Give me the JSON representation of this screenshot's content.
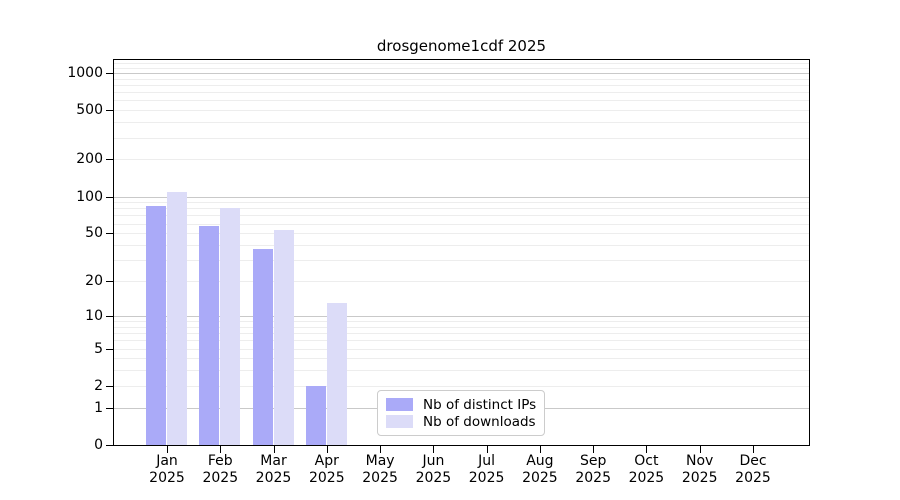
{
  "title": "drosgenome1cdf 2025",
  "legend": {
    "items": [
      {
        "label": "Nb of distinct IPs",
        "color": "#aaaaf8"
      },
      {
        "label": "Nb of downloads",
        "color": "#dcdcf8"
      }
    ]
  },
  "chart_data": {
    "type": "bar",
    "title": "drosgenome1cdf 2025",
    "categories": [
      "Jan",
      "Feb",
      "Mar",
      "Apr",
      "May",
      "Jun",
      "Jul",
      "Aug",
      "Sep",
      "Oct",
      "Nov",
      "Dec"
    ],
    "category_year": "2025",
    "series": [
      {
        "name": "Nb of distinct IPs",
        "color": "#aaaaf8",
        "values": [
          83,
          57,
          37,
          2,
          0,
          0,
          0,
          0,
          0,
          0,
          0,
          0
        ]
      },
      {
        "name": "Nb of downloads",
        "color": "#dcdcf8",
        "values": [
          108,
          80,
          53,
          13,
          0,
          0,
          0,
          0,
          0,
          0,
          0,
          0
        ]
      }
    ],
    "yscale": "log1p",
    "ylim": [
      0,
      1290
    ],
    "yticks": [
      0,
      1,
      2,
      5,
      10,
      20,
      50,
      100,
      200,
      500,
      1000
    ],
    "minor_gridlines": [
      2,
      3,
      4,
      5,
      6,
      7,
      8,
      9,
      20,
      30,
      40,
      50,
      60,
      70,
      80,
      90,
      200,
      300,
      400,
      500,
      600,
      700,
      800,
      900,
      1100,
      1200
    ],
    "major_gridlines": [
      1,
      10,
      100,
      1000
    ],
    "grid": true,
    "legend_position": "lower center inside",
    "xlabel": "",
    "ylabel": ""
  }
}
